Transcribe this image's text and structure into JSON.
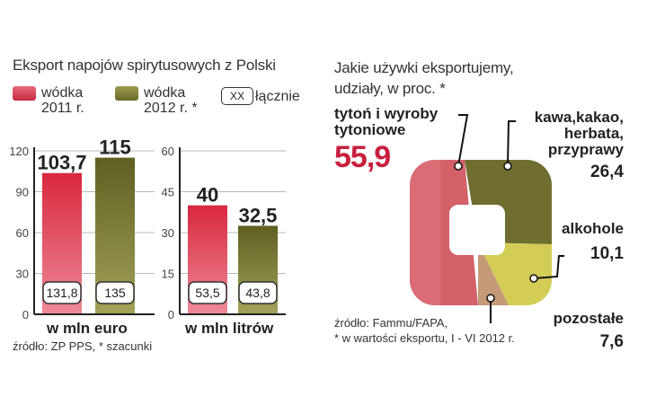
{
  "left": {
    "title": "Eksport napojów spirytusowych z Polski",
    "legend": [
      {
        "line1": "wódka",
        "line2": "2011 r."
      },
      {
        "line1": "wódka",
        "line2": "2012 r. *"
      },
      {
        "box": "XX",
        "label": "łącznie"
      }
    ],
    "source": "źródło: ZP PPS, * szacunki"
  },
  "right": {
    "title_line1": "Jakie używki eksportujemy,",
    "title_line2": "udziały, w proc. *",
    "source_line1": "źródło: Fammu/FAPA,",
    "source_line2": "* w wartości eksportu, I - VI 2012 r."
  },
  "colors": {
    "red": "#d23f52",
    "olive": "#7a7a34",
    "pie_red": "#d4606a",
    "pie_olive": "#6f6d2f",
    "pie_yellow": "#d3cd58",
    "pie_tan": "#c49a78",
    "accent_text": "#c8203e"
  },
  "chart_data": [
    {
      "type": "bar",
      "title": "Eksport napojów spirytusowych z Polski",
      "xlabel": "w mln euro",
      "ylim": [
        0,
        120
      ],
      "yticks": [
        "0",
        "30",
        "60",
        "90",
        "120"
      ],
      "series": [
        {
          "name": "wódka 2011 r.",
          "values": [
            103.7
          ],
          "labels": [
            "103,7"
          ]
        },
        {
          "name": "wódka 2012 r. *",
          "values": [
            115
          ],
          "labels": [
            "115"
          ]
        }
      ],
      "totals": [
        "131,8",
        "135"
      ]
    },
    {
      "type": "bar",
      "xlabel": "w mln litrów",
      "ylim": [
        0,
        60
      ],
      "yticks": [
        "0",
        "15",
        "30",
        "45",
        "60"
      ],
      "series": [
        {
          "name": "wódka 2011 r.",
          "values": [
            40
          ],
          "labels": [
            "40"
          ]
        },
        {
          "name": "wódka 2012 r. *",
          "values": [
            32.5
          ],
          "labels": [
            "32,5"
          ]
        }
      ],
      "totals": [
        "53,5",
        "43,8"
      ]
    },
    {
      "type": "pie",
      "title": "Jakie używki eksportujemy, udziały, w proc. *",
      "slices": [
        {
          "label_lines": [
            "tytoń i wyroby",
            "tytoniowe"
          ],
          "value": 55.9,
          "display": "55,9"
        },
        {
          "label_lines": [
            "kawa,kakao,",
            "herbata,",
            "przyprawy"
          ],
          "value": 26.4,
          "display": "26,4"
        },
        {
          "label_lines": [
            "alkohole"
          ],
          "value": 10.1,
          "display": "10,1"
        },
        {
          "label_lines": [
            "pozostałe"
          ],
          "value": 7.6,
          "display": "7,6"
        }
      ]
    }
  ]
}
